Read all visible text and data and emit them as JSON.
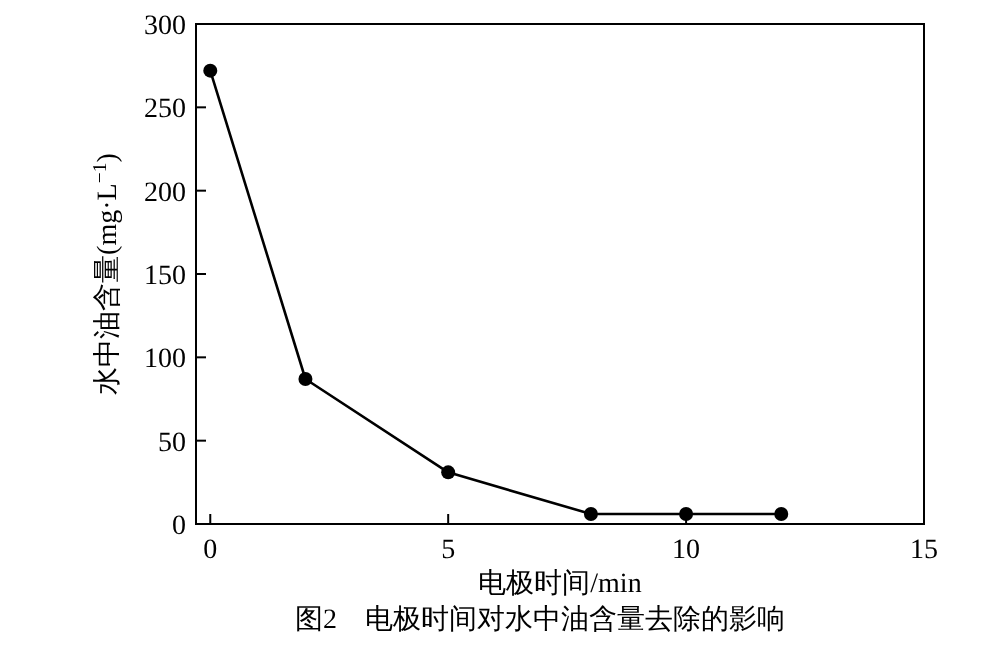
{
  "chart_data": {
    "type": "line",
    "xlabel": "电极时间/min",
    "ylabel": "水中油含量(mg·L$^{−1}$)",
    "annotations": [
      "图2　电极时间对水中油含量去除的影响"
    ],
    "x": [
      0,
      2,
      5,
      8,
      10,
      12
    ],
    "series": [
      {
        "color": "#000000",
        "values": [
          272,
          87,
          31,
          6,
          6,
          6
        ]
      }
    ],
    "xlim": [
      -0.3,
      15
    ],
    "xticks": [
      0,
      5,
      10,
      15
    ],
    "ylim": [
      0,
      300
    ],
    "yticks": [
      0,
      50,
      100,
      150,
      200,
      250,
      300
    ],
    "marker": "circle",
    "line_style": "solid",
    "grid": false
  }
}
